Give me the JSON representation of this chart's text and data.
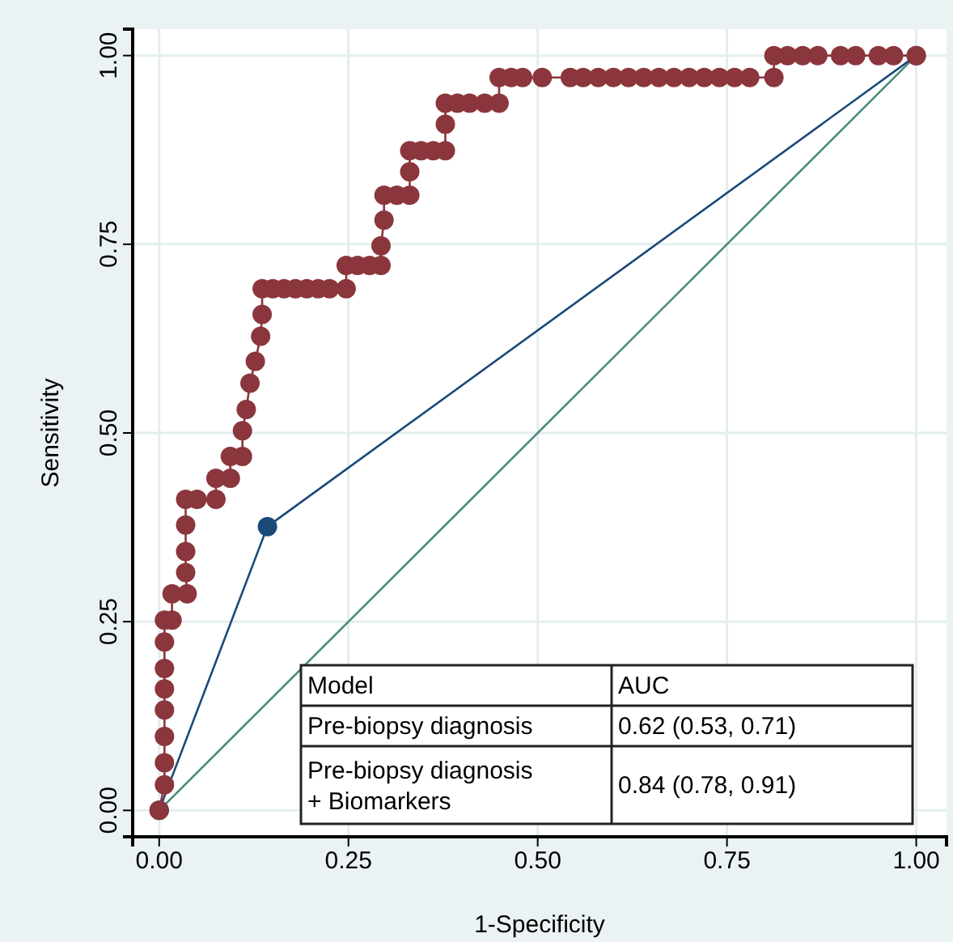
{
  "chart_data": {
    "type": "line",
    "xlabel": "1-Specificity",
    "ylabel": "Sensitivity",
    "xlim": [
      -0.035,
      1.04
    ],
    "ylim": [
      -0.035,
      1.035
    ],
    "xticks": [
      {
        "value": 0,
        "label": "0.00"
      },
      {
        "value": 0.25,
        "label": "0.25"
      },
      {
        "value": 0.5,
        "label": "0.50"
      },
      {
        "value": 0.75,
        "label": "0.75"
      },
      {
        "value": 1,
        "label": "1.00"
      }
    ],
    "yticks": [
      {
        "value": 0,
        "label": "0.00"
      },
      {
        "value": 0.25,
        "label": "0.25"
      },
      {
        "value": 0.5,
        "label": "0.50"
      },
      {
        "value": 0.75,
        "label": "0.75"
      },
      {
        "value": 1,
        "label": "1.00"
      }
    ],
    "grid": true,
    "series": [
      {
        "color": "#4a8c7c",
        "marker": "none",
        "x": [
          0,
          1
        ],
        "values": [
          0,
          1
        ]
      },
      {
        "color": "#1a4a78",
        "marker": "circle",
        "x": [
          0,
          0.143,
          1
        ],
        "values": [
          0,
          0.376,
          1
        ]
      },
      {
        "color": "#8b363c",
        "marker": "circle",
        "x": [
          0,
          0.007,
          0.007,
          0.007,
          0.007,
          0.007,
          0.007,
          0.007,
          0.007,
          0.017,
          0.017,
          0.037,
          0.035,
          0.035,
          0.035,
          0.035,
          0.05,
          0.075,
          0.075,
          0.094,
          0.094,
          0.11,
          0.11,
          0.115,
          0.12,
          0.127,
          0.134,
          0.136,
          0.136,
          0.15,
          0.165,
          0.18,
          0.195,
          0.21,
          0.225,
          0.247,
          0.247,
          0.262,
          0.278,
          0.293,
          0.293,
          0.297,
          0.297,
          0.314,
          0.331,
          0.331,
          0.331,
          0.346,
          0.362,
          0.378,
          0.378,
          0.378,
          0.394,
          0.41,
          0.43,
          0.449,
          0.449,
          0.465,
          0.48,
          0.506,
          0.543,
          0.56,
          0.58,
          0.6,
          0.62,
          0.64,
          0.66,
          0.68,
          0.7,
          0.72,
          0.74,
          0.76,
          0.78,
          0.812,
          0.812,
          0.83,
          0.85,
          0.87,
          0.9,
          0.92,
          0.95,
          0.97,
          1
        ],
        "values": [
          0,
          0.034,
          0.063,
          0.098,
          0.133,
          0.161,
          0.188,
          0.223,
          0.252,
          0.252,
          0.287,
          0.287,
          0.315,
          0.343,
          0.378,
          0.412,
          0.412,
          0.412,
          0.44,
          0.44,
          0.469,
          0.469,
          0.503,
          0.531,
          0.566,
          0.595,
          0.628,
          0.657,
          0.691,
          0.691,
          0.691,
          0.691,
          0.691,
          0.691,
          0.691,
          0.691,
          0.722,
          0.722,
          0.722,
          0.722,
          0.748,
          0.782,
          0.815,
          0.815,
          0.815,
          0.846,
          0.874,
          0.874,
          0.874,
          0.874,
          0.909,
          0.937,
          0.937,
          0.937,
          0.937,
          0.937,
          0.971,
          0.971,
          0.971,
          0.971,
          0.971,
          0.971,
          0.971,
          0.971,
          0.971,
          0.971,
          0.971,
          0.971,
          0.971,
          0.971,
          0.971,
          0.971,
          0.971,
          0.971,
          1,
          1,
          1,
          1,
          1,
          1,
          1,
          1,
          1
        ]
      }
    ],
    "annotations": [
      "Model",
      "AUC",
      "Pre-biopsy diagnosis",
      "0.62 (0.53, 0.71)",
      "Pre-biopsy diagnosis\n+ Biomarkers",
      "0.84 (0.78, 0.91)"
    ]
  }
}
